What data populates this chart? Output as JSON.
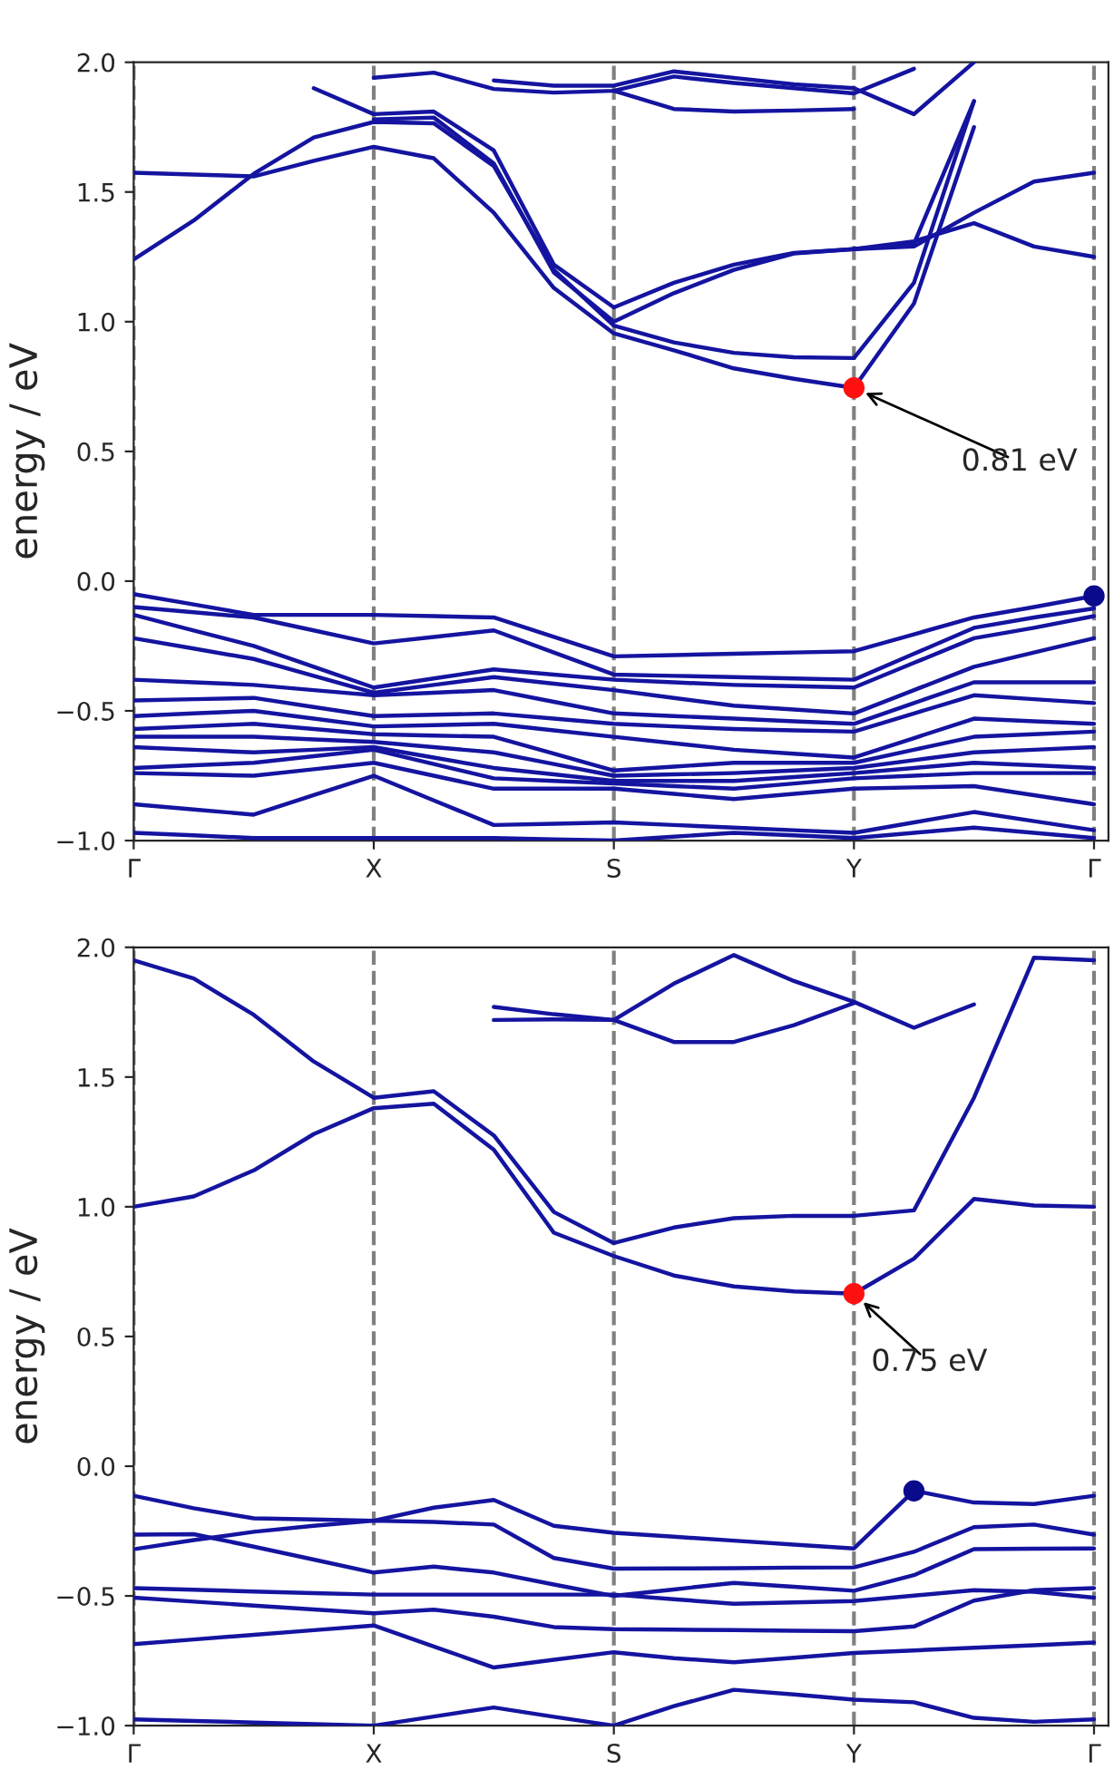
{
  "chart_data": [
    {
      "type": "line",
      "ylabel": "energy / eV",
      "ylim": [
        -1,
        2
      ],
      "grid": "x",
      "categories": [
        "Γ",
        null,
        null,
        null,
        "X",
        null,
        null,
        null,
        "S",
        null,
        null,
        null,
        "Y",
        null,
        null,
        null,
        "Γ"
      ],
      "yticks": [
        {
          "value": -1,
          "label": "−1.0"
        },
        {
          "value": -0.5,
          "label": "−0.5"
        },
        {
          "value": 0,
          "label": "0.0"
        },
        {
          "value": 0.5,
          "label": "0.5"
        },
        {
          "value": 1,
          "label": "1.0"
        },
        {
          "value": 1.5,
          "label": "1.5"
        },
        {
          "value": 2,
          "label": "2.0"
        }
      ],
      "annotations": [
        {
          "text": "0.81 eV",
          "x": "Y",
          "y": 0.745
        }
      ],
      "series": [
        {
          "color": "#1414a0",
          "values": [
            1.574,
            1.567,
            1.56,
            1.62,
            1.674,
            1.63,
            1.42,
            1.13,
            0.955,
            0.89,
            0.82,
            0.78,
            0.745,
            1.07,
            1.75,
            null,
            null
          ]
        },
        {
          "color": "#1414a0",
          "values": [
            1.24,
            1.39,
            1.57,
            1.71,
            1.77,
            1.765,
            1.6,
            1.2,
            0.985,
            0.92,
            0.88,
            0.863,
            0.86,
            1.15,
            1.85,
            null,
            null
          ]
        },
        {
          "color": "#1414a0",
          "values": [
            null,
            null,
            null,
            1.9,
            1.8,
            1.81,
            1.66,
            1.22,
            1.055,
            1.15,
            1.22,
            1.265,
            1.28,
            1.31,
            1.38,
            1.29,
            1.25
          ]
        },
        {
          "color": "#1414a0",
          "values": [
            null,
            null,
            null,
            null,
            1.78,
            1.787,
            1.61,
            1.19,
            1.0,
            1.11,
            1.2,
            1.263,
            1.28,
            1.3,
            1.85,
            null,
            null
          ]
        },
        {
          "color": "#1414a0",
          "values": [
            null,
            null,
            null,
            null,
            null,
            null,
            null,
            null,
            null,
            null,
            null,
            null,
            1.28,
            1.29,
            1.42,
            1.54,
            1.574
          ]
        },
        {
          "color": "#1414a0",
          "values": [
            null,
            null,
            null,
            null,
            1.94,
            1.96,
            1.897,
            1.883,
            1.89,
            1.945,
            1.92,
            1.9,
            1.88,
            1.975,
            null,
            null,
            null
          ]
        },
        {
          "color": "#1414a0",
          "values": [
            null,
            null,
            null,
            null,
            null,
            null,
            null,
            null,
            1.89,
            1.82,
            1.81,
            1.814,
            1.82,
            null,
            null,
            null,
            null
          ]
        },
        {
          "color": "#1414a0",
          "values": [
            null,
            null,
            null,
            null,
            null,
            null,
            1.93,
            1.91,
            1.91,
            1.965,
            1.94,
            1.915,
            1.9,
            1.8,
            2.0,
            null,
            null
          ]
        },
        {
          "color": "#1414a0",
          "values": [
            -0.05,
            -0.09,
            -0.13,
            -0.13,
            -0.13,
            -0.135,
            -0.14,
            -0.215,
            -0.29,
            -0.285,
            -0.28,
            -0.275,
            -0.27,
            -0.205,
            -0.14,
            -0.1,
            -0.057
          ]
        },
        {
          "color": "#1414a0",
          "values": [
            -0.1,
            -0.12,
            -0.14,
            -0.19,
            -0.24,
            -0.215,
            -0.19,
            -0.275,
            -0.36,
            -0.365,
            -0.37,
            -0.375,
            -0.38,
            -0.28,
            -0.18,
            -0.14,
            -0.105
          ]
        },
        {
          "color": "#1414a0",
          "values": [
            -0.13,
            -0.19,
            -0.25,
            -0.33,
            -0.41,
            -0.375,
            -0.34,
            -0.36,
            -0.38,
            -0.39,
            -0.4,
            -0.405,
            -0.41,
            -0.315,
            -0.22,
            -0.18,
            -0.135
          ]
        },
        {
          "color": "#1414a0",
          "values": [
            -0.22,
            -0.26,
            -0.3,
            -0.365,
            -0.43,
            -0.4,
            -0.37,
            -0.395,
            -0.42,
            -0.45,
            -0.48,
            -0.495,
            -0.51,
            -0.42,
            -0.33,
            -0.275,
            -0.22
          ]
        },
        {
          "color": "#1414a0",
          "values": [
            -0.38,
            -0.39,
            -0.4,
            -0.42,
            -0.44,
            -0.43,
            -0.42,
            -0.465,
            -0.51,
            -0.52,
            -0.53,
            -0.54,
            -0.55,
            -0.47,
            -0.39,
            -0.39,
            -0.39
          ]
        },
        {
          "color": "#1414a0",
          "values": [
            -0.46,
            -0.455,
            -0.45,
            -0.485,
            -0.52,
            -0.515,
            -0.51,
            -0.53,
            -0.55,
            -0.56,
            -0.57,
            -0.575,
            -0.58,
            -0.51,
            -0.44,
            -0.455,
            -0.47
          ]
        },
        {
          "color": "#1414a0",
          "values": [
            -0.52,
            -0.51,
            -0.5,
            -0.53,
            -0.56,
            -0.555,
            -0.55,
            -0.575,
            -0.6,
            -0.625,
            -0.65,
            -0.665,
            -0.68,
            -0.605,
            -0.53,
            -0.54,
            -0.55
          ]
        },
        {
          "color": "#1414a0",
          "values": [
            -0.57,
            -0.56,
            -0.55,
            -0.57,
            -0.59,
            -0.595,
            -0.6,
            -0.665,
            -0.73,
            -0.715,
            -0.7,
            -0.7,
            -0.7,
            -0.65,
            -0.6,
            -0.59,
            -0.58
          ]
        },
        {
          "color": "#1414a0",
          "values": [
            -0.6,
            -0.6,
            -0.6,
            -0.61,
            -0.62,
            -0.64,
            -0.66,
            -0.705,
            -0.75,
            -0.745,
            -0.74,
            -0.73,
            -0.72,
            -0.69,
            -0.66,
            -0.65,
            -0.64
          ]
        },
        {
          "color": "#1414a0",
          "values": [
            -0.64,
            -0.65,
            -0.66,
            -0.65,
            -0.64,
            -0.68,
            -0.72,
            -0.745,
            -0.77,
            -0.77,
            -0.77,
            -0.755,
            -0.74,
            -0.72,
            -0.7,
            -0.71,
            -0.72
          ]
        },
        {
          "color": "#1414a0",
          "values": [
            -0.72,
            -0.71,
            -0.7,
            -0.675,
            -0.65,
            -0.705,
            -0.76,
            -0.77,
            -0.78,
            -0.79,
            -0.8,
            -0.78,
            -0.76,
            -0.75,
            -0.74,
            -0.74,
            -0.74
          ]
        },
        {
          "color": "#1414a0",
          "values": [
            -0.74,
            -0.745,
            -0.75,
            -0.725,
            -0.7,
            -0.75,
            -0.8,
            -0.8,
            -0.8,
            -0.82,
            -0.84,
            -0.82,
            -0.8,
            -0.795,
            -0.79,
            -0.825,
            -0.86
          ]
        },
        {
          "color": "#1414a0",
          "values": [
            -0.86,
            -0.88,
            -0.9,
            -0.825,
            -0.75,
            -0.845,
            -0.94,
            -0.935,
            -0.93,
            -0.94,
            -0.95,
            -0.96,
            -0.97,
            -0.93,
            -0.89,
            -0.925,
            -0.96
          ]
        },
        {
          "color": "#1414a0",
          "values": [
            -0.97,
            -0.98,
            -0.99,
            -0.99,
            -0.99,
            -0.99,
            -0.99,
            -0.995,
            -1.0,
            -0.985,
            -0.97,
            -0.98,
            -0.99,
            -0.97,
            -0.95,
            -0.97,
            -0.99
          ]
        },
        {
          "type": "scatter",
          "color": "#ff1010",
          "values": [
            null,
            null,
            null,
            null,
            null,
            null,
            null,
            null,
            null,
            null,
            null,
            null,
            0.745,
            null,
            null,
            null,
            null
          ]
        },
        {
          "type": "scatter",
          "color": "#0a0a8c",
          "values": [
            null,
            null,
            null,
            null,
            null,
            null,
            null,
            null,
            null,
            null,
            null,
            null,
            null,
            null,
            null,
            null,
            -0.057
          ]
        }
      ]
    },
    {
      "type": "line",
      "ylabel": "energy / eV",
      "ylim": [
        -1,
        2
      ],
      "grid": "x",
      "categories": [
        "Γ",
        null,
        null,
        null,
        "X",
        null,
        null,
        null,
        "S",
        null,
        null,
        null,
        "Y",
        null,
        null,
        null,
        "Γ"
      ],
      "yticks": [
        {
          "value": -1,
          "label": "−1.0"
        },
        {
          "value": -0.5,
          "label": "−0.5"
        },
        {
          "value": 0,
          "label": "0.0"
        },
        {
          "value": 0.5,
          "label": "0.5"
        },
        {
          "value": 1,
          "label": "1.0"
        },
        {
          "value": 1.5,
          "label": "1.5"
        },
        {
          "value": 2,
          "label": "2.0"
        }
      ],
      "annotations": [
        {
          "text": "0.75 eV",
          "x": "Y",
          "y": 0.665
        }
      ],
      "series": [
        {
          "color": "#1414a0",
          "values": [
            1.95,
            1.88,
            1.74,
            1.56,
            1.42,
            1.445,
            1.275,
            0.98,
            0.86,
            0.92,
            0.956,
            0.965,
            0.965,
            0.986,
            1.42,
            1.96,
            1.95
          ]
        },
        {
          "color": "#1414a0",
          "values": [
            1.0,
            1.04,
            1.14,
            1.28,
            1.38,
            1.397,
            1.22,
            0.9,
            0.81,
            0.735,
            0.693,
            0.674,
            0.665,
            0.8,
            1.03,
            1.005,
            1.0
          ]
        },
        {
          "color": "#1414a0",
          "values": [
            null,
            null,
            null,
            null,
            null,
            null,
            1.77,
            1.742,
            1.72,
            1.86,
            1.97,
            1.87,
            1.79,
            1.69,
            1.78,
            null,
            null
          ]
        },
        {
          "color": "#1414a0",
          "values": [
            null,
            null,
            null,
            null,
            null,
            null,
            1.72,
            1.722,
            1.72,
            1.635,
            1.635,
            1.7,
            1.785,
            null,
            null,
            null,
            null
          ]
        },
        {
          "color": "#1414a0",
          "values": [
            -0.114,
            -0.162,
            -0.201,
            -0.205,
            -0.21,
            -0.16,
            -0.13,
            -0.23,
            -0.257,
            -0.272,
            -0.287,
            -0.302,
            -0.317,
            -0.095,
            -0.14,
            -0.146,
            -0.114
          ]
        },
        {
          "color": "#1414a0",
          "values": [
            -0.264,
            -0.262,
            -0.31,
            -0.36,
            -0.41,
            -0.387,
            -0.41,
            -0.456,
            -0.5,
            -0.475,
            -0.45,
            -0.465,
            -0.48,
            -0.42,
            -0.32,
            -0.318,
            -0.317
          ]
        },
        {
          "color": "#1414a0",
          "values": [
            -0.32,
            -0.285,
            -0.253,
            -0.23,
            -0.21,
            -0.215,
            -0.225,
            -0.354,
            -0.395,
            -0.394,
            -0.393,
            -0.391,
            -0.39,
            -0.33,
            -0.235,
            -0.225,
            -0.264
          ]
        },
        {
          "color": "#1414a0",
          "values": [
            -0.47,
            -0.476,
            -0.483,
            -0.489,
            -0.495,
            -0.495,
            -0.495,
            -0.495,
            -0.495,
            -0.513,
            -0.53,
            -0.525,
            -0.52,
            -0.499,
            -0.478,
            -0.484,
            -0.507
          ]
        },
        {
          "color": "#1414a0",
          "values": [
            -0.507,
            -0.522,
            -0.537,
            -0.552,
            -0.567,
            -0.553,
            -0.58,
            -0.62,
            -0.628,
            -0.63,
            -0.632,
            -0.634,
            -0.636,
            -0.618,
            -0.518,
            -0.478,
            -0.47
          ]
        },
        {
          "color": "#1414a0",
          "values": [
            -0.686,
            -0.668,
            -0.65,
            -0.632,
            -0.614,
            -0.695,
            -0.776,
            -0.746,
            -0.717,
            -0.74,
            -0.756,
            -0.738,
            -0.72,
            -0.71,
            -0.7,
            -0.69,
            -0.68
          ]
        },
        {
          "color": "#1414a0",
          "values": [
            -0.976,
            -0.982,
            -0.988,
            -0.994,
            -1.0,
            -0.965,
            -0.93,
            -0.966,
            -1.0,
            -0.925,
            -0.862,
            -0.88,
            -0.9,
            -0.91,
            -0.97,
            -0.985,
            -0.976
          ]
        },
        {
          "type": "scatter",
          "color": "#ff1010",
          "values": [
            null,
            null,
            null,
            null,
            null,
            null,
            null,
            null,
            null,
            null,
            null,
            null,
            0.665,
            null,
            null,
            null,
            null
          ]
        },
        {
          "type": "scatter",
          "color": "#0a0a8c",
          "values": [
            null,
            null,
            null,
            null,
            null,
            null,
            null,
            null,
            null,
            null,
            null,
            null,
            null,
            -0.095,
            null,
            null,
            null
          ]
        }
      ]
    }
  ]
}
